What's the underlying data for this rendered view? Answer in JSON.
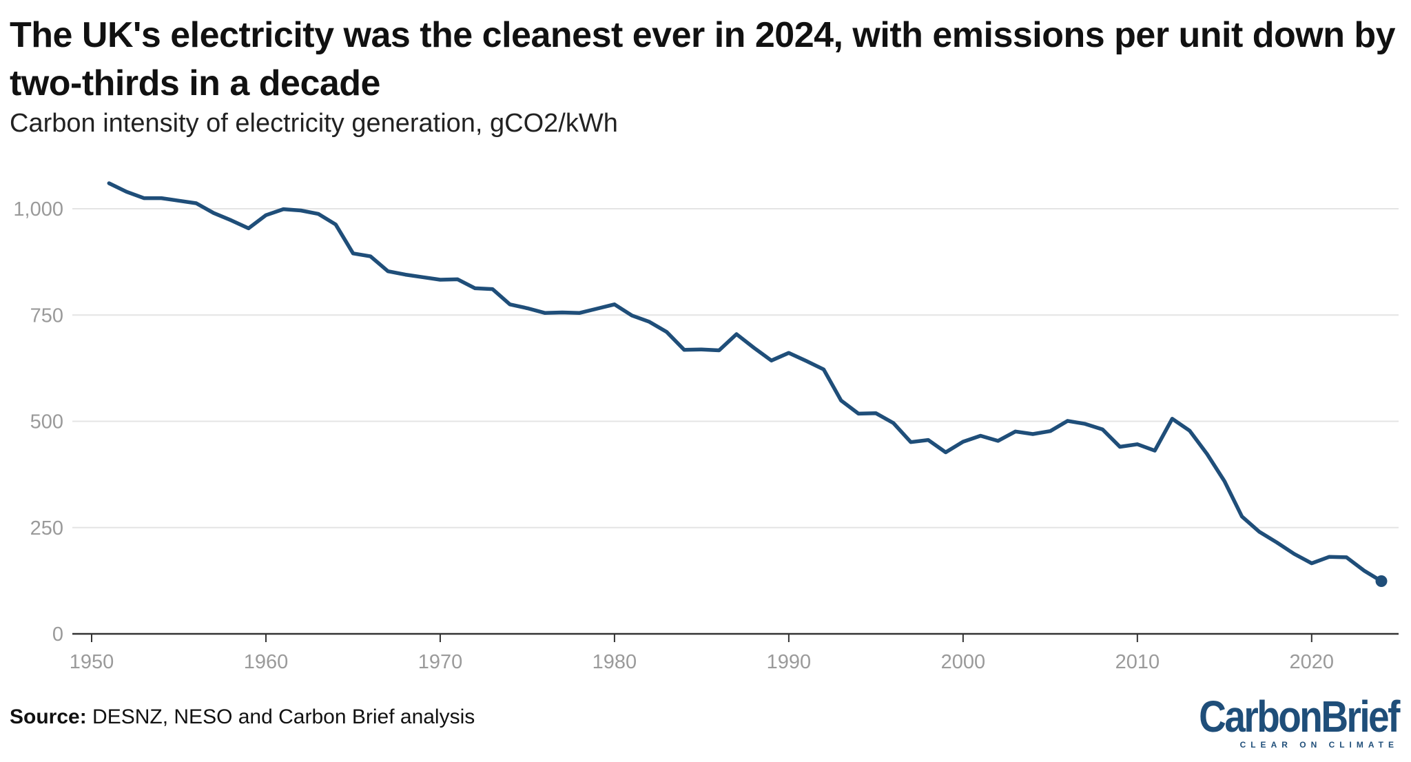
{
  "header": {
    "title": "The UK's electricity was the cleanest ever in 2024, with emissions per unit down by two-thirds in a decade",
    "subtitle": "Carbon intensity of electricity generation, gCO2/kWh"
  },
  "footer": {
    "source_label": "Source:",
    "source_text": "DESNZ, NESO and Carbon Brief analysis",
    "logo_text": "CarbonBrief",
    "logo_tagline": "CLEAR ON CLIMATE"
  },
  "colors": {
    "line": "#1f4e79",
    "grid": "#e4e4e4",
    "axis": "#333333",
    "ticks": "#9a9a9a"
  },
  "chart_data": {
    "type": "line",
    "title": "The UK's electricity was the cleanest ever in 2024, with emissions per unit down by two-thirds in a decade",
    "subtitle": "Carbon intensity of electricity generation, gCO2/kWh",
    "xlabel": "",
    "ylabel": "gCO2/kWh",
    "xlim": [
      1950,
      2024
    ],
    "ylim": [
      0,
      1100
    ],
    "xticks": [
      1950,
      1960,
      1970,
      1980,
      1990,
      2000,
      2010,
      2020
    ],
    "yticks": [
      0,
      250,
      500,
      750,
      1000
    ],
    "ytick_labels": [
      "0",
      "250",
      "500",
      "750",
      "1,000"
    ],
    "grid": true,
    "series": [
      {
        "name": "Carbon intensity",
        "x": [
          1951,
          1952,
          1953,
          1954,
          1955,
          1956,
          1957,
          1958,
          1959,
          1960,
          1961,
          1962,
          1963,
          1964,
          1965,
          1966,
          1967,
          1968,
          1969,
          1970,
          1971,
          1972,
          1973,
          1974,
          1975,
          1976,
          1977,
          1978,
          1979,
          1980,
          1981,
          1982,
          1983,
          1984,
          1985,
          1986,
          1987,
          1988,
          1989,
          1990,
          1991,
          1992,
          1993,
          1994,
          1995,
          1996,
          1997,
          1998,
          1999,
          2000,
          2001,
          2002,
          2003,
          2004,
          2005,
          2006,
          2007,
          2008,
          2009,
          2010,
          2011,
          2012,
          2013,
          2014,
          2015,
          2016,
          2017,
          2018,
          2019,
          2020,
          2021,
          2022,
          2023,
          2024
        ],
        "values": [
          1060,
          1040,
          1025,
          1025,
          1019,
          1013,
          990,
          973,
          954,
          985,
          999,
          996,
          988,
          963,
          895,
          888,
          853,
          845,
          839,
          833,
          834,
          813,
          811,
          775,
          766,
          755,
          756,
          755,
          765,
          775,
          749,
          734,
          710,
          668,
          669,
          667,
          705,
          673,
          643,
          661,
          642,
          622,
          549,
          518,
          519,
          496,
          451,
          456,
          427,
          452,
          466,
          454,
          476,
          470,
          477,
          501,
          494,
          481,
          440,
          446,
          431,
          506,
          478,
          423,
          359,
          276,
          240,
          215,
          188,
          166,
          181,
          180,
          149,
          124
        ]
      }
    ],
    "end_marker": {
      "x": 2024,
      "y": 124
    }
  }
}
